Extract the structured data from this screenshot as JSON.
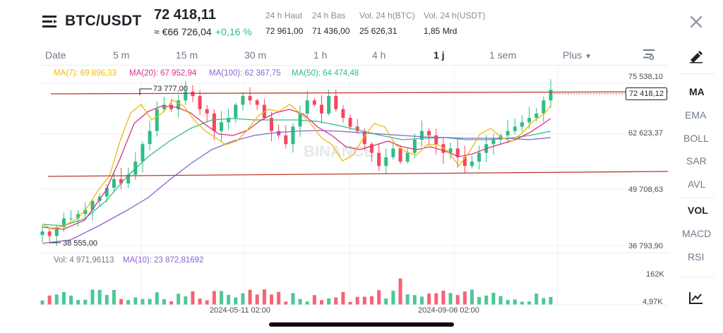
{
  "header": {
    "pair": "BTC/USDT",
    "price": "72 418,11",
    "converted": "≈ €66 726,04",
    "change": "+0,16 %",
    "stats": [
      {
        "label": "24 h Haut",
        "value": "72 961,00"
      },
      {
        "label": "24 h Bas",
        "value": "71 436,00"
      },
      {
        "label": "Vol. 24 h(BTC)",
        "value": "25 626,31"
      },
      {
        "label": "Vol. 24 h(USDT)",
        "value": "1,85 Mrd"
      }
    ]
  },
  "timeframes": {
    "date_label": "Date",
    "items": [
      "5 m",
      "15 m",
      "30 m",
      "1 h",
      "4 h",
      "1 j",
      "1 sem"
    ],
    "more_label": "Plus",
    "active": "1 j"
  },
  "ma_legend": [
    {
      "label": "MA(7): 69 896,33",
      "color": "#f0b90b"
    },
    {
      "label": "MA(20): 67 952,94",
      "color": "#d63384"
    },
    {
      "label": "MA(100): 62 367,75",
      "color": "#8a63d2"
    },
    {
      "label": "MA(50): 64 474,48",
      "color": "#2ebd85"
    }
  ],
  "price_axis": [
    "75 538,10",
    "62 623,37",
    "49 708,63",
    "36 793,90"
  ],
  "current_price_tag": "72 418,12",
  "chart_annotations": {
    "high": "73 777,00",
    "low": "38 555,00",
    "watermark": "BINANCE"
  },
  "volume": {
    "vol_label": "Vol: 4 971,96113",
    "ma10_label": "MA(10): 23 872,81692",
    "axis": [
      "162K",
      "4,97K"
    ]
  },
  "dates": [
    "2024-05-11 02:00",
    "2024-09-06 02:00"
  ],
  "sidebar": {
    "main": [
      "MA",
      "EMA",
      "BOLL",
      "SAR",
      "AVL"
    ],
    "sub": [
      "VOL",
      "MACD",
      "RSI"
    ]
  },
  "colors": {
    "up": "#2ebd85",
    "down": "#f6465d",
    "accent": "#f0b90b",
    "trendline": "#c0392b"
  },
  "chart_data": {
    "type": "candlestick",
    "title": "BTC/USDT 1 j",
    "ylim": [
      36793.9,
      75538.1
    ],
    "annotations": {
      "high": 73777,
      "low": 38555,
      "last": 72418.12
    },
    "closes": [
      40000,
      39000,
      41000,
      43000,
      43000,
      44000,
      45000,
      47000,
      48000,
      50000,
      52000,
      51000,
      53000,
      56000,
      60000,
      63000,
      68000,
      69000,
      68000,
      70000,
      72000,
      71000,
      68000,
      67000,
      63000,
      65000,
      66000,
      69000,
      71000,
      70000,
      69000,
      66000,
      63000,
      62000,
      60000,
      64000,
      67000,
      70000,
      69000,
      67000,
      71000,
      68000,
      66000,
      64000,
      63000,
      60000,
      58000,
      55000,
      57000,
      59000,
      56000,
      58000,
      61000,
      63000,
      62000,
      60000,
      58000,
      59000,
      57000,
      55000,
      56000,
      58000,
      60000,
      61000,
      62000,
      63000,
      64000,
      65000,
      66000,
      67000,
      70000,
      72418
    ]
  }
}
